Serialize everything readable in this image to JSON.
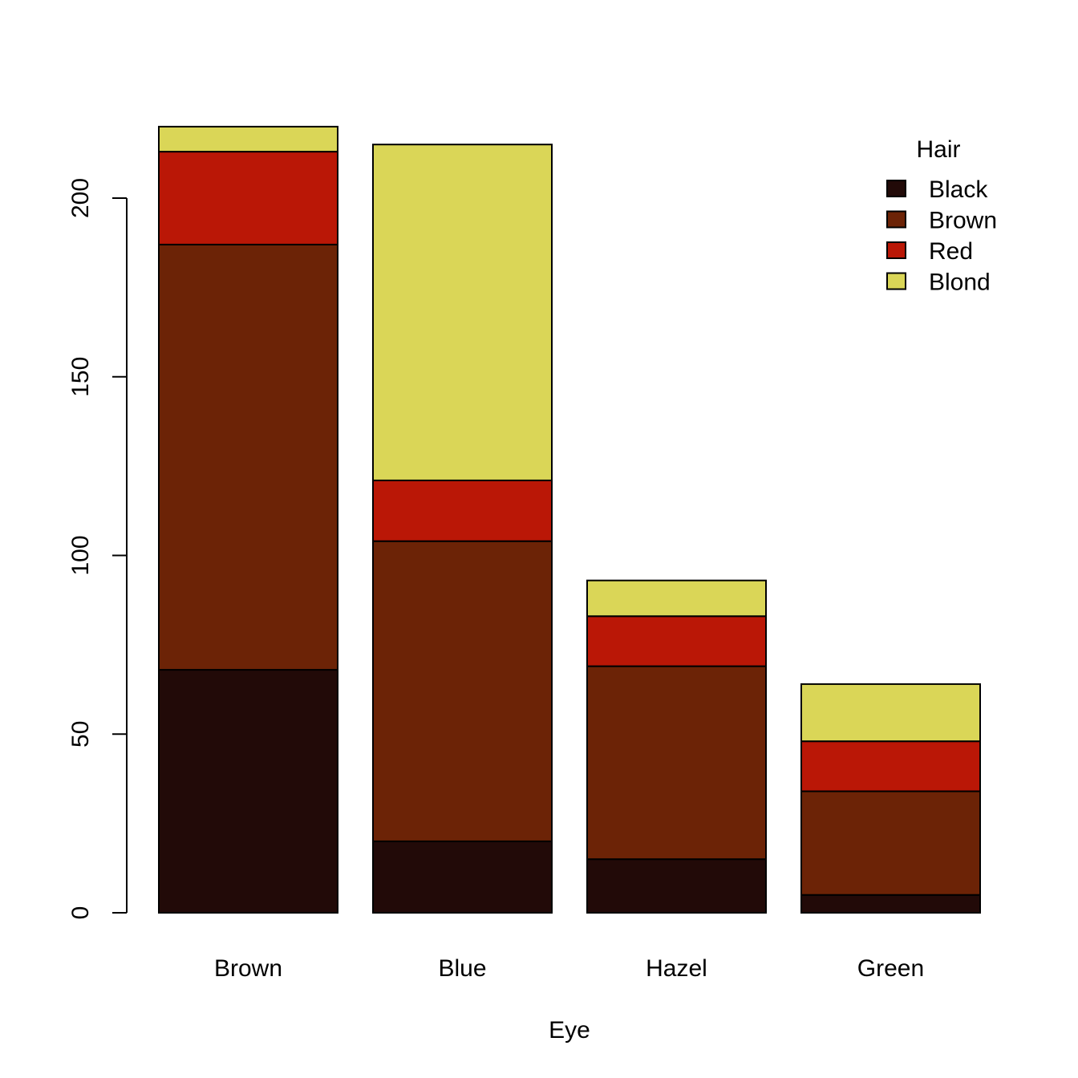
{
  "chart_data": {
    "type": "bar",
    "stacked": true,
    "categories": [
      "Brown",
      "Blue",
      "Hazel",
      "Green"
    ],
    "series": [
      {
        "name": "Black",
        "color": "#220A08",
        "values": [
          68,
          20,
          15,
          5
        ]
      },
      {
        "name": "Brown",
        "color": "#6C2306",
        "values": [
          119,
          84,
          54,
          29
        ]
      },
      {
        "name": "Red",
        "color": "#BA1706",
        "values": [
          26,
          17,
          14,
          14
        ]
      },
      {
        "name": "Blond",
        "color": "#DAD657",
        "values": [
          7,
          94,
          10,
          16
        ]
      }
    ],
    "title": "",
    "xlabel": "Eye",
    "ylabel": "",
    "ylim": [
      0,
      220
    ],
    "yticks": [
      0,
      50,
      100,
      150,
      200
    ],
    "grid": false,
    "legend": {
      "title": "Hair",
      "position": "top-right"
    }
  }
}
